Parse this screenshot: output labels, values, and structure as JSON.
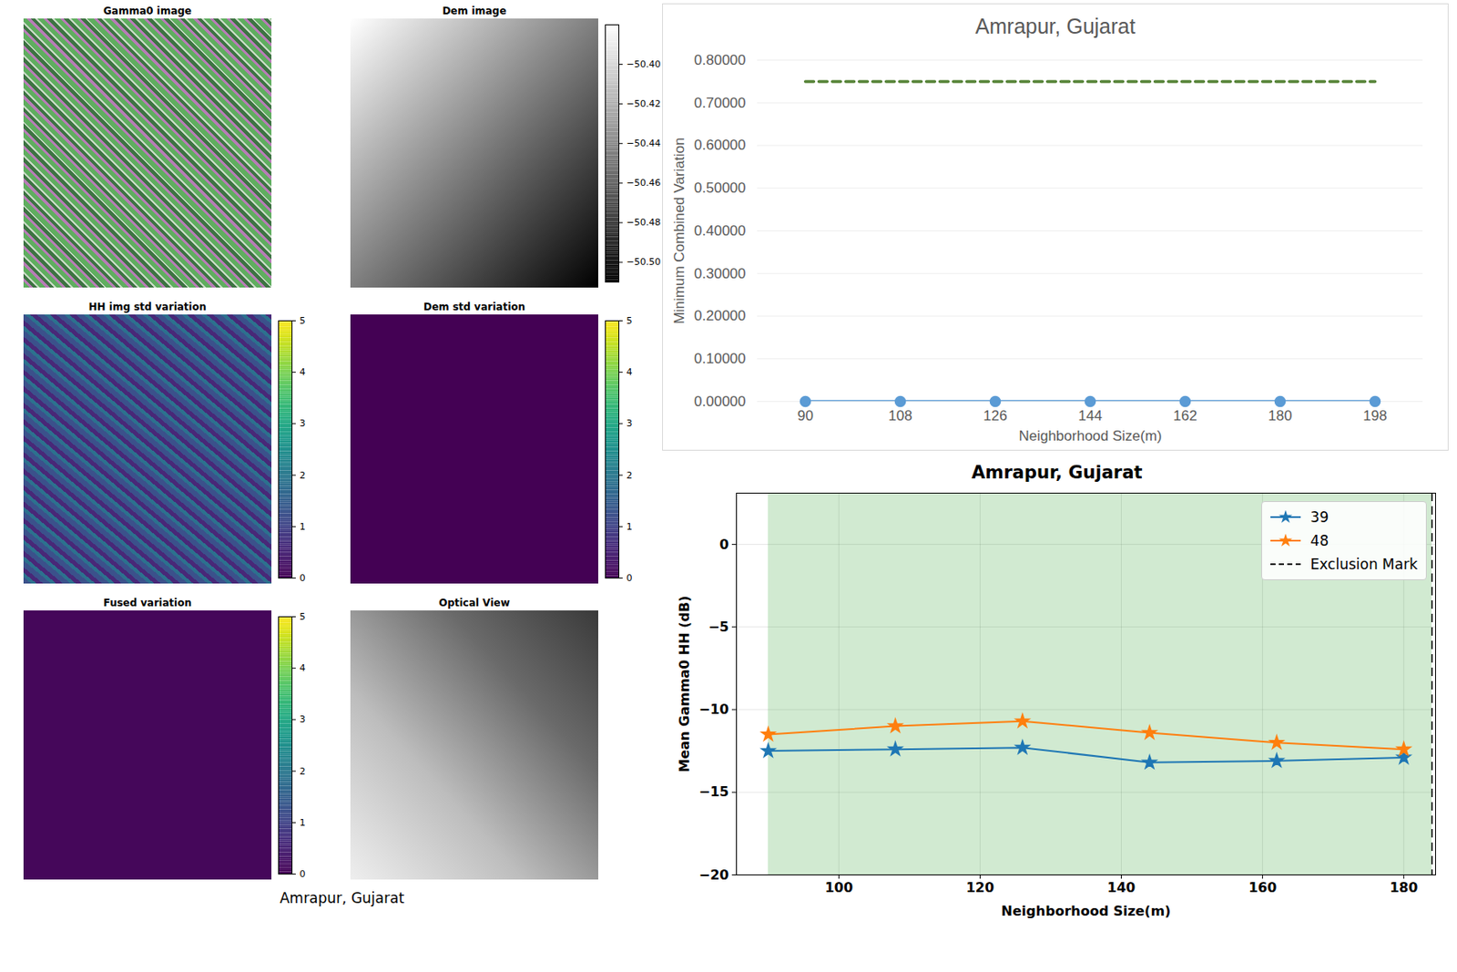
{
  "figure_caption": "Amrapur, Gujarat",
  "image_panels": [
    {
      "title": "Gamma0 image"
    },
    {
      "title": "Dem image",
      "colorbar": {
        "color": "gray",
        "range": [
          -50.51,
          -50.38
        ],
        "ticks": [
          {
            "value": -50.4,
            "label": "−50.40"
          },
          {
            "value": -50.42,
            "label": "−50.42"
          },
          {
            "value": -50.44,
            "label": "−50.44"
          },
          {
            "value": -50.46,
            "label": "−50.46"
          },
          {
            "value": -50.48,
            "label": "−50.48"
          },
          {
            "value": -50.5,
            "label": "−50.50"
          }
        ]
      }
    },
    {
      "title": "HH img std variation",
      "colorbar": {
        "color": "viridis",
        "range": [
          0,
          5
        ],
        "ticks": [
          0,
          1,
          2,
          3,
          4,
          5
        ]
      }
    },
    {
      "title": "Dem std variation",
      "colorbar": {
        "color": "viridis",
        "range": [
          0,
          5
        ],
        "ticks": [
          0,
          1,
          2,
          3,
          4,
          5
        ]
      }
    },
    {
      "title": "Fused variation",
      "colorbar": {
        "color": "viridis",
        "range": [
          0,
          5
        ],
        "ticks": [
          0,
          1,
          2,
          3,
          4,
          5
        ]
      }
    },
    {
      "title": "Optical View"
    }
  ],
  "chart_data": [
    {
      "type": "line",
      "title": "Amrapur, Gujarat",
      "x_label": "Neighborhood Size(m)",
      "y_label": "Minimum Combined Variation",
      "categories": [
        90,
        108,
        126,
        144,
        162,
        180,
        198
      ],
      "series": [
        {
          "color": "#5b9bd5",
          "marker": "circle",
          "line_style": "solid",
          "values": [
            0,
            0,
            0,
            0,
            0,
            0,
            0
          ]
        },
        {
          "color": "#548235",
          "marker": "none",
          "line_style": "dashed",
          "values": [
            0.75,
            0.75,
            0.75,
            0.75,
            0.75,
            0.75,
            0.75
          ]
        }
      ],
      "ylim": [
        0,
        0.8
      ],
      "yticks": [
        {
          "value": 0,
          "label": "0.00000"
        },
        {
          "value": 0.1,
          "label": "0.10000"
        },
        {
          "value": 0.2,
          "label": "0.20000"
        },
        {
          "value": 0.3,
          "label": "0.30000"
        },
        {
          "value": 0.4,
          "label": "0.40000"
        },
        {
          "value": 0.5,
          "label": "0.50000"
        },
        {
          "value": 0.6,
          "label": "0.60000"
        },
        {
          "value": 0.7,
          "label": "0.70000"
        },
        {
          "value": 0.8,
          "label": "0.80000"
        }
      ],
      "grid": true
    },
    {
      "type": "line",
      "title": "Amrapur, Gujarat",
      "x_label": "Neighborhood Size(m)",
      "y_label": "Mean Gamma0 HH (dB)",
      "x": [
        90,
        108,
        126,
        144,
        162,
        180
      ],
      "series": [
        {
          "name": "39",
          "color": "#1f77b4",
          "marker": "star",
          "line_style": "solid",
          "values": [
            -12.5,
            -12.4,
            -12.3,
            -13.2,
            -13.1,
            -12.9
          ]
        },
        {
          "name": "48",
          "color": "#ff7f0e",
          "marker": "star",
          "line_style": "solid",
          "values": [
            -11.5,
            -11.0,
            -10.7,
            -11.4,
            -12.0,
            -12.4
          ]
        }
      ],
      "shaded_region": {
        "x": [
          90,
          184
        ],
        "color": "#2ca02c"
      },
      "exclusion_mark": {
        "name": "Exclusion Mark",
        "value": 184,
        "color": "#000000",
        "line_style": "dashed"
      },
      "xlim": [
        85.5,
        184.5
      ],
      "xticks": [
        100,
        120,
        140,
        160,
        180
      ],
      "ylim": [
        -20,
        3.1
      ],
      "yticks": [
        {
          "value": -20,
          "label": "−20"
        },
        {
          "value": -15,
          "label": "−15"
        },
        {
          "value": -10,
          "label": "−10"
        },
        {
          "value": -5,
          "label": "−5"
        },
        0
      ],
      "grid": true,
      "legend": "upper right"
    }
  ]
}
